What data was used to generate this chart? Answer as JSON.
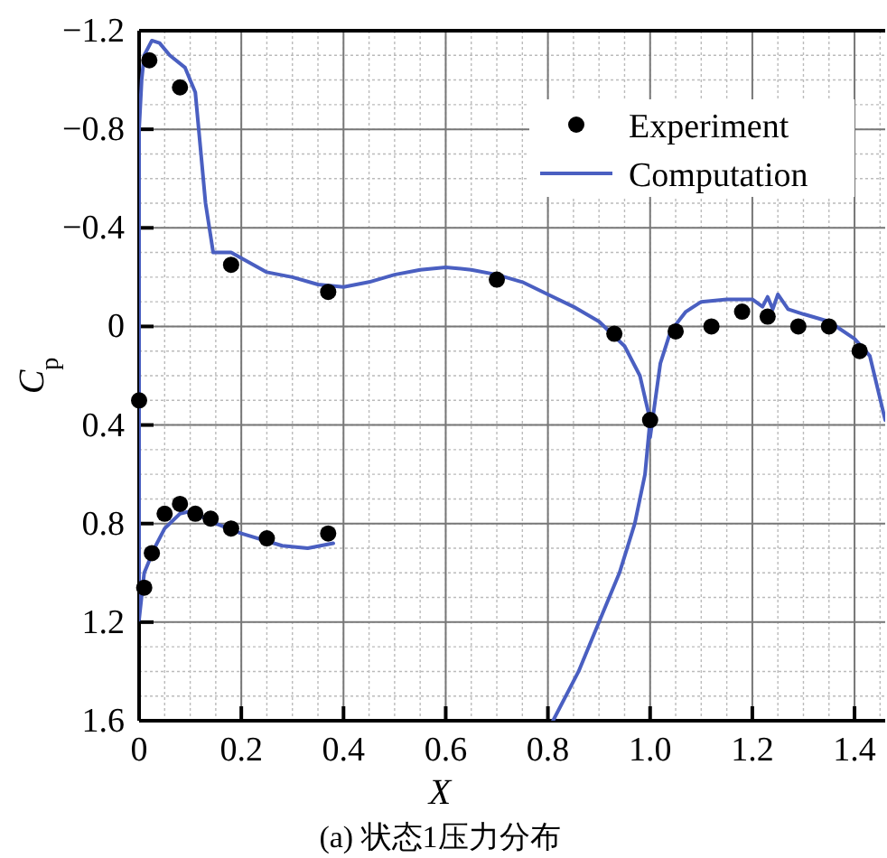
{
  "chart_data": {
    "type": "scatter",
    "title": "(a) 状态1压力分布",
    "xlabel": "X",
    "ylabel": "C$_{p}$",
    "xlim": [
      0,
      1.46
    ],
    "xticks": [
      {
        "value": 0,
        "label": "0"
      },
      {
        "value": 0.2,
        "label": "0.2"
      },
      {
        "value": 0.4,
        "label": "0.4"
      },
      {
        "value": 0.6,
        "label": "0.6"
      },
      {
        "value": 0.8,
        "label": "0.8"
      },
      {
        "value": 1.0,
        "label": "1.0"
      },
      {
        "value": 1.2,
        "label": "1.2"
      },
      {
        "value": 1.4,
        "label": "1.4"
      }
    ],
    "ylim": [
      1.6,
      -1.2
    ],
    "yticks": [
      {
        "value": -1.2,
        "label": "−1.2"
      },
      {
        "value": -0.8,
        "label": "−0.8"
      },
      {
        "value": -0.4,
        "label": "−0.4"
      },
      0,
      0.4,
      0.8,
      1.2,
      1.6
    ],
    "grid": true,
    "legend": "top right",
    "series": [
      {
        "name": "Experiment",
        "marker": "circle",
        "color": "#000000",
        "x": [
          0,
          0.02,
          0.08,
          0.18,
          0.37,
          0.7,
          0.93,
          1.0,
          1.05,
          1.12,
          1.18,
          1.23,
          1.29,
          1.35,
          1.41,
          0.01,
          0.025,
          0.05,
          0.08,
          0.11,
          0.14,
          0.18,
          0.25,
          0.37
        ],
        "values": [
          0.3,
          -1.08,
          -0.97,
          -0.25,
          -0.14,
          -0.19,
          0.03,
          0.38,
          0.02,
          0.0,
          -0.06,
          -0.04,
          0.0,
          0.0,
          0.1,
          1.06,
          0.92,
          0.76,
          0.72,
          0.76,
          0.78,
          0.82,
          0.86,
          0.84
        ]
      },
      {
        "name": "Computation",
        "type": "line",
        "line_style": "solid",
        "color": "#4a5fc1",
        "x": [
          0.38,
          0.33,
          0.28,
          0.2,
          0.15,
          0.1,
          0.08,
          0.05,
          0.03,
          0.01,
          0,
          0,
          0.005,
          0.01,
          0.025,
          0.04,
          0.06,
          0.09,
          0.11,
          0.13,
          0.145,
          0.18,
          0.25,
          0.3,
          0.35,
          0.4,
          0.45,
          0.5,
          0.55,
          0.6,
          0.65,
          0.7,
          0.75,
          0.8,
          0.85,
          0.9,
          0.95,
          0.98,
          1.0,
          0.99,
          0.97,
          0.94,
          0.9,
          0.86,
          0.81,
          0.9,
          1.0,
          1.01,
          1.02,
          1.04,
          1.07,
          1.1,
          1.15,
          1.2,
          1.22,
          1.23,
          1.24,
          1.25,
          1.27,
          1.3,
          1.35,
          1.4,
          1.43,
          1.46
        ],
        "values": [
          0.88,
          0.9,
          0.89,
          0.84,
          0.8,
          0.75,
          0.76,
          0.82,
          0.9,
          1.0,
          1.19,
          -0.8,
          -1.0,
          -1.1,
          -1.16,
          -1.15,
          -1.1,
          -1.05,
          -0.95,
          -0.5,
          -0.3,
          -0.3,
          -0.22,
          -0.2,
          -0.17,
          -0.16,
          -0.18,
          -0.21,
          -0.23,
          -0.24,
          -0.23,
          -0.21,
          -0.18,
          -0.13,
          -0.08,
          -0.02,
          0.08,
          0.2,
          0.38,
          0.6,
          0.8,
          1.0,
          1.2,
          1.4,
          1.6,
          null,
          0.45,
          0.3,
          0.15,
          0.02,
          -0.06,
          -0.1,
          -0.11,
          -0.11,
          -0.08,
          -0.12,
          -0.07,
          -0.13,
          -0.07,
          -0.05,
          -0.02,
          0.05,
          0.12,
          0.38
        ]
      }
    ]
  }
}
